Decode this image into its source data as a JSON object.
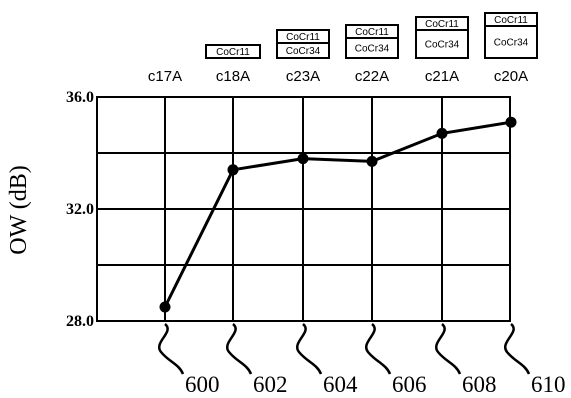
{
  "chart_data": {
    "type": "line",
    "categories": [
      "c17A",
      "c18A",
      "c23A",
      "c22A",
      "c21A",
      "c20A"
    ],
    "values": [
      28.5,
      33.4,
      33.8,
      33.7,
      34.7,
      35.1
    ],
    "ylabel": "OW (dB)",
    "ylim": [
      28.0,
      36.0
    ],
    "ytick_labels": [
      "36.0",
      "32.0",
      "28.0"
    ],
    "grid": true,
    "reference_numerals": [
      "600",
      "602",
      "604",
      "606",
      "608",
      "610"
    ],
    "layer_stacks": [
      [],
      [
        "CoCr11"
      ],
      [
        "CoCr11",
        "CoCr34"
      ],
      [
        "CoCr11",
        "CoCr34"
      ],
      [
        "CoCr11",
        "CoCr34"
      ],
      [
        "CoCr11",
        "CoCr34"
      ]
    ],
    "colors": {
      "line": "#000000",
      "background": "#ffffff"
    }
  }
}
